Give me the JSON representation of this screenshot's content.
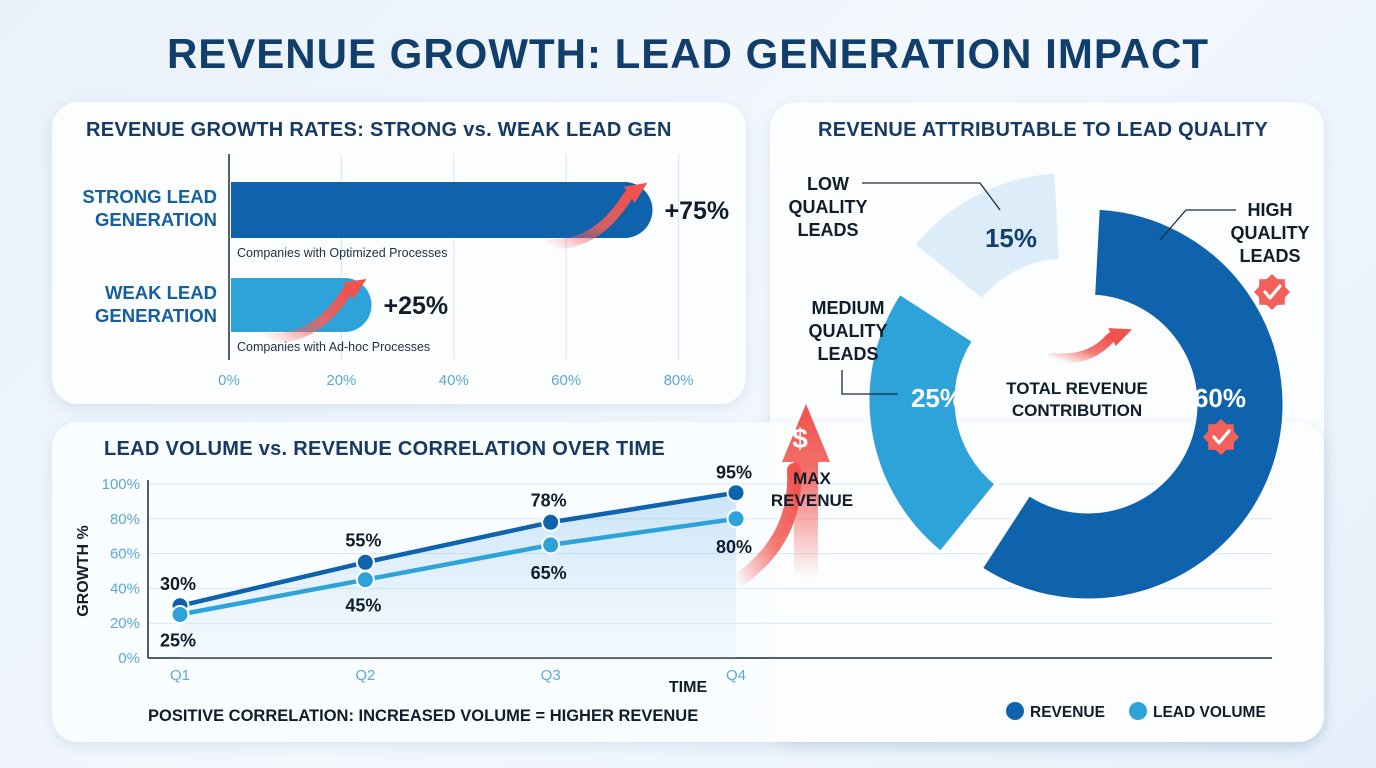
{
  "title": "REVENUE GROWTH: LEAD GENERATION IMPACT",
  "colors": {
    "revenue": "#0f63ad",
    "lead_volume": "#2ea3d9",
    "accent": "#f2605a",
    "title": "#123e6b"
  },
  "chart_data": [
    {
      "type": "bar",
      "orientation": "horizontal",
      "title": "REVENUE GROWTH RATES: STRONG vs. WEAK LEAD GEN",
      "categories": [
        "STRONG LEAD GENERATION",
        "WEAK LEAD GENERATION"
      ],
      "category_lines": [
        [
          "STRONG LEAD",
          "GENERATION"
        ],
        [
          "WEAK LEAD",
          "GENERATION"
        ]
      ],
      "values": [
        75,
        25
      ],
      "value_labels": [
        "+75%",
        "+25%"
      ],
      "sublabels": [
        "Companies with Optimized Processes",
        "Companies with Ad-hoc Processes"
      ],
      "xticks": [
        "0%",
        "20%",
        "40%",
        "60%",
        "80%"
      ],
      "xlim": [
        0,
        80
      ],
      "grid": true
    },
    {
      "type": "line",
      "title": "LEAD VOLUME vs. REVENUE CORRELATION OVER TIME",
      "xlabel": "TIME",
      "ylabel": "GROWTH %",
      "categories": [
        "Q1",
        "Q2",
        "Q3",
        "Q4"
      ],
      "yticks": [
        "0%",
        "20%",
        "40%",
        "60%",
        "80%",
        "100%"
      ],
      "ylim": [
        0,
        100
      ],
      "series": [
        {
          "name": "REVENUE",
          "values": [
            30,
            55,
            78,
            95
          ],
          "labels": [
            "30%",
            "55%",
            "78%",
            "95%"
          ]
        },
        {
          "name": "LEAD VOLUME",
          "values": [
            25,
            45,
            65,
            80
          ],
          "labels": [
            "25%",
            "45%",
            "65%",
            "80%"
          ]
        }
      ],
      "annotation": [
        "MAX",
        "REVENUE"
      ],
      "annotation_icon": "$",
      "footnote": "POSITIVE CORRELATION: INCREASED VOLUME = HIGHER REVENUE",
      "grid": true
    },
    {
      "type": "pie",
      "donut": true,
      "title": "REVENUE ATTRIBUTABLE TO LEAD QUALITY",
      "center_label": [
        "TOTAL REVENUE",
        "CONTRIBUTION"
      ],
      "slices": [
        {
          "name": "HIGH QUALITY LEADS",
          "lines": [
            "HIGH",
            "QUALITY",
            "LEADS"
          ],
          "value": 60,
          "label": "60%"
        },
        {
          "name": "MEDIUM QUALITY LEADS",
          "lines": [
            "MEDIUM",
            "QUALITY",
            "LEADS"
          ],
          "value": 25,
          "label": "25%"
        },
        {
          "name": "LOW QUALITY LEADS",
          "lines": [
            "LOW",
            "QUALITY",
            "LEADS"
          ],
          "value": 15,
          "label": "15%"
        }
      ]
    }
  ],
  "legend": [
    {
      "name": "REVENUE",
      "color": "#0f63ad"
    },
    {
      "name": "LEAD VOLUME",
      "color": "#2ea3d9"
    }
  ]
}
